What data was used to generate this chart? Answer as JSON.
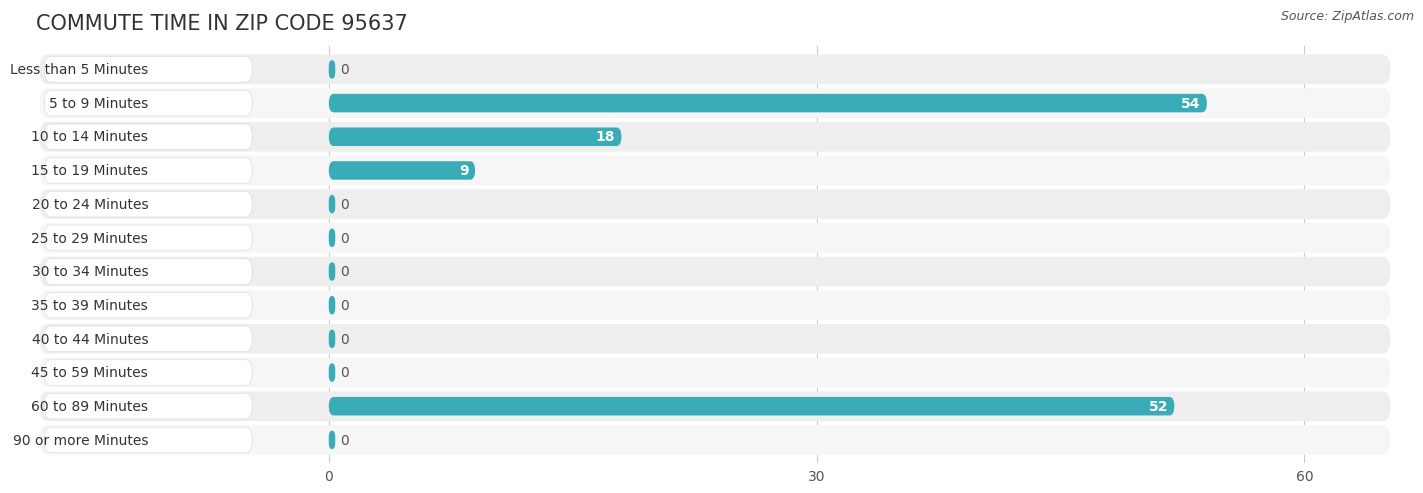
{
  "title": "COMMUTE TIME IN ZIP CODE 95637",
  "source": "Source: ZipAtlas.com",
  "categories": [
    "Less than 5 Minutes",
    "5 to 9 Minutes",
    "10 to 14 Minutes",
    "15 to 19 Minutes",
    "20 to 24 Minutes",
    "25 to 29 Minutes",
    "30 to 34 Minutes",
    "35 to 39 Minutes",
    "40 to 44 Minutes",
    "45 to 59 Minutes",
    "60 to 89 Minutes",
    "90 or more Minutes"
  ],
  "values": [
    0,
    54,
    18,
    9,
    0,
    0,
    0,
    0,
    0,
    0,
    52,
    0
  ],
  "bar_color": "#3AACB8",
  "bg_row_color": "#F0F0F0",
  "bg_alt_color": "#FAFAFA",
  "label_bg_color": "#FFFFFF",
  "xlim": [
    0,
    65
  ],
  "xticks": [
    0,
    30,
    60
  ],
  "title_fontsize": 15,
  "label_fontsize": 10,
  "value_fontsize": 10,
  "source_fontsize": 9,
  "bar_height": 0.55,
  "figure_bg": "#FFFFFF"
}
